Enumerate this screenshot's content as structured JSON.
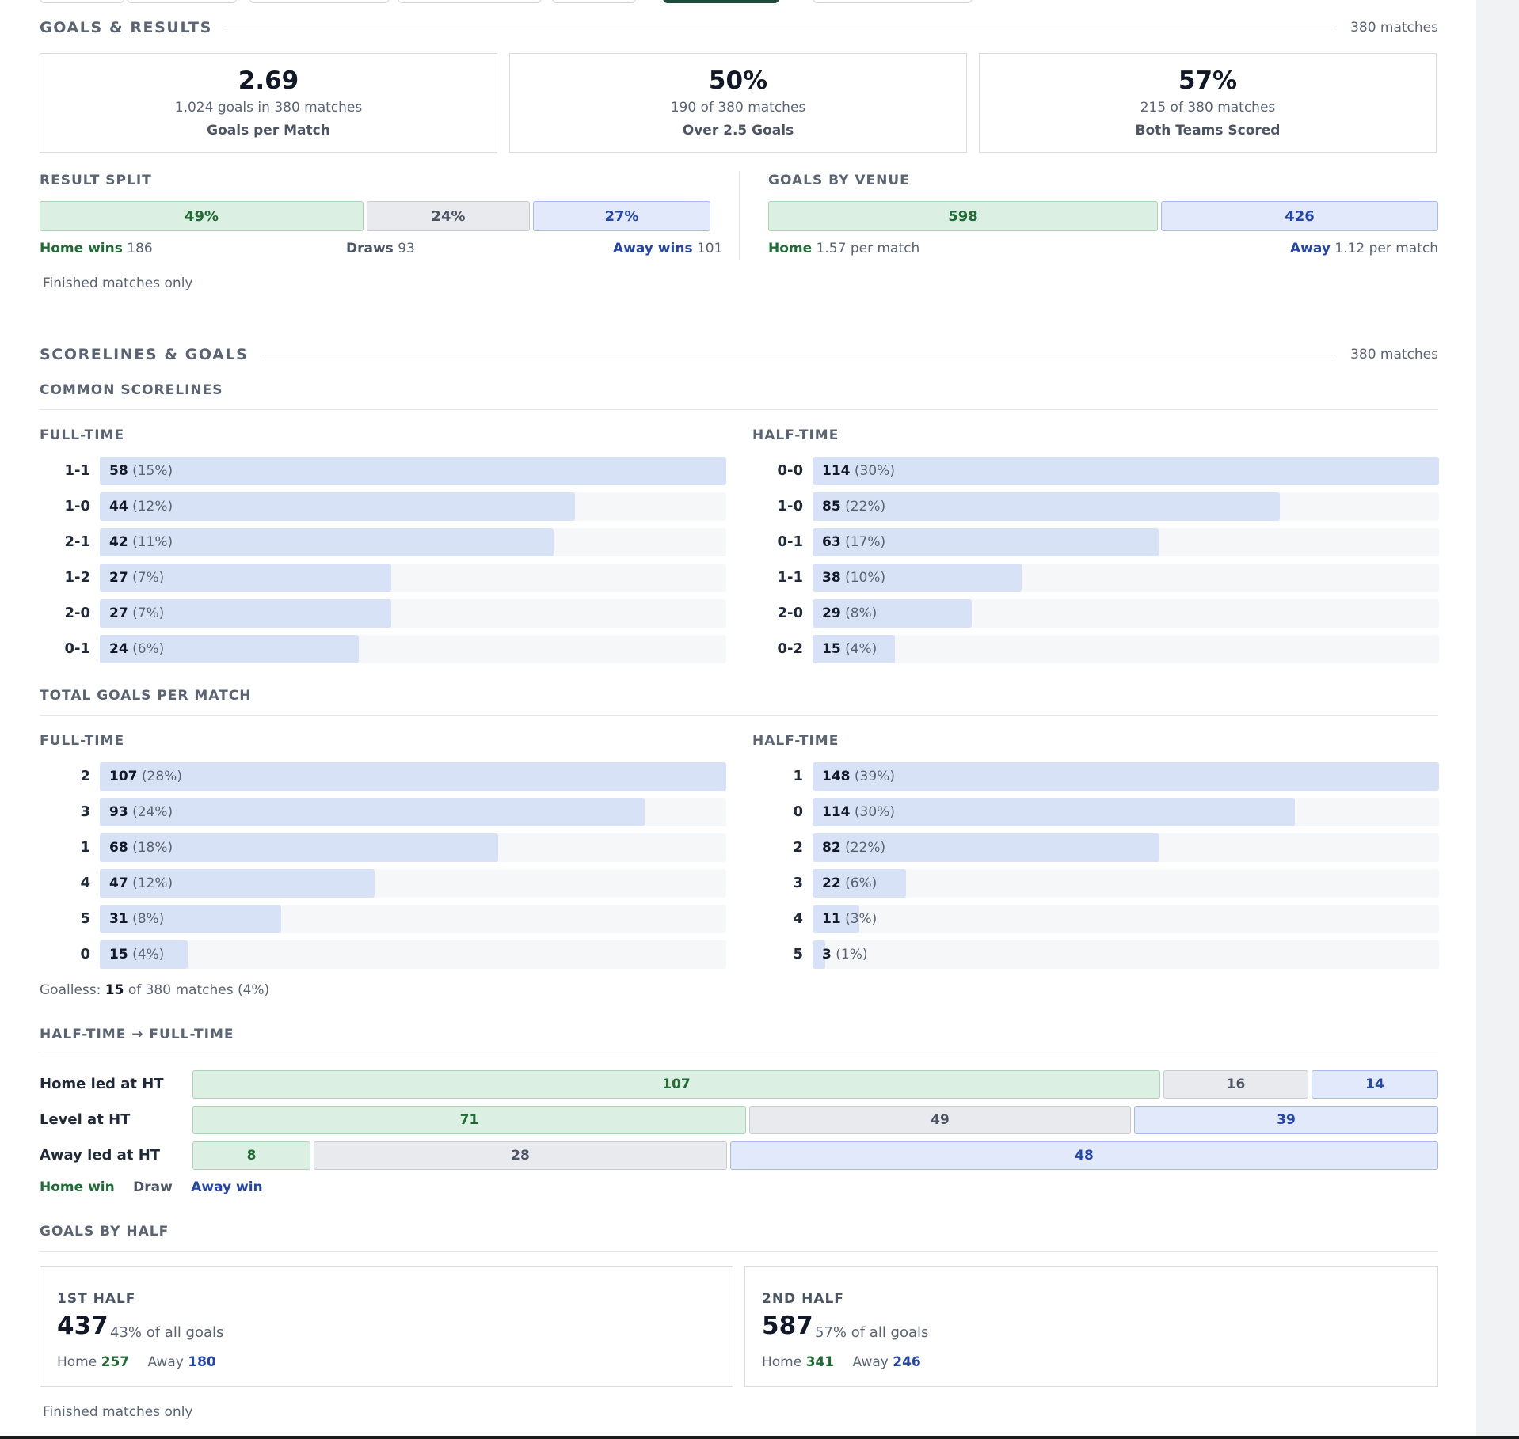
{
  "goals_results": {
    "title": "GOALS & RESULTS",
    "count": "380 matches",
    "cards": [
      {
        "value": "2.69",
        "sub": "1,024 goals in 380 matches",
        "label": "Goals per Match"
      },
      {
        "value": "50%",
        "sub": "190 of 380 matches",
        "label": "Over 2.5 Goals"
      },
      {
        "value": "57%",
        "sub": "215 of 380 matches",
        "label": "Both Teams Scored"
      }
    ],
    "result_split": {
      "title": "RESULT SPLIT",
      "home_pct": "49%",
      "draw_pct": "24%",
      "away_pct": "27%",
      "home_label": "Home wins",
      "home_count": "186",
      "draw_label": "Draws",
      "draw_count": "93",
      "away_label": "Away wins",
      "away_count": "101"
    },
    "goals_by_venue": {
      "title": "GOALS BY VENUE",
      "home_value": "598",
      "away_value": "426",
      "home_label": "Home",
      "home_rate": "1.57 per match",
      "away_label": "Away",
      "away_rate": "1.12 per match"
    },
    "note": "Finished matches only"
  },
  "scorelines_goals": {
    "title": "SCORELINES & GOALS",
    "count": "380 matches",
    "common_scorelines": {
      "title": "COMMON SCORELINES",
      "full_time": {
        "title": "FULL-TIME",
        "rows": [
          {
            "label": "1-1",
            "count": "58",
            "pct": "(15%)",
            "value": 58
          },
          {
            "label": "1-0",
            "count": "44",
            "pct": "(12%)",
            "value": 44
          },
          {
            "label": "2-1",
            "count": "42",
            "pct": "(11%)",
            "value": 42
          },
          {
            "label": "1-2",
            "count": "27",
            "pct": "(7%)",
            "value": 27
          },
          {
            "label": "2-0",
            "count": "27",
            "pct": "(7%)",
            "value": 27
          },
          {
            "label": "0-1",
            "count": "24",
            "pct": "(6%)",
            "value": 24
          }
        ]
      },
      "half_time": {
        "title": "HALF-TIME",
        "rows": [
          {
            "label": "0-0",
            "count": "114",
            "pct": "(30%)",
            "value": 114
          },
          {
            "label": "1-0",
            "count": "85",
            "pct": "(22%)",
            "value": 85
          },
          {
            "label": "0-1",
            "count": "63",
            "pct": "(17%)",
            "value": 63
          },
          {
            "label": "1-1",
            "count": "38",
            "pct": "(10%)",
            "value": 38
          },
          {
            "label": "2-0",
            "count": "29",
            "pct": "(8%)",
            "value": 29
          },
          {
            "label": "0-2",
            "count": "15",
            "pct": "(4%)",
            "value": 15
          }
        ]
      }
    },
    "total_goals": {
      "title": "TOTAL GOALS PER MATCH",
      "full_time": {
        "title": "FULL-TIME",
        "rows": [
          {
            "label": "2",
            "count": "107",
            "pct": "(28%)",
            "value": 107
          },
          {
            "label": "3",
            "count": "93",
            "pct": "(24%)",
            "value": 93
          },
          {
            "label": "1",
            "count": "68",
            "pct": "(18%)",
            "value": 68
          },
          {
            "label": "4",
            "count": "47",
            "pct": "(12%)",
            "value": 47
          },
          {
            "label": "5",
            "count": "31",
            "pct": "(8%)",
            "value": 31
          },
          {
            "label": "0",
            "count": "15",
            "pct": "(4%)",
            "value": 15
          }
        ]
      },
      "half_time": {
        "title": "HALF-TIME",
        "rows": [
          {
            "label": "1",
            "count": "148",
            "pct": "(39%)",
            "value": 148
          },
          {
            "label": "0",
            "count": "114",
            "pct": "(30%)",
            "value": 114
          },
          {
            "label": "2",
            "count": "82",
            "pct": "(22%)",
            "value": 82
          },
          {
            "label": "3",
            "count": "22",
            "pct": "(6%)",
            "value": 22
          },
          {
            "label": "4",
            "count": "11",
            "pct": "(3%)",
            "value": 11
          },
          {
            "label": "5",
            "count": "3",
            "pct": "(1%)",
            "value": 3
          }
        ]
      },
      "goalless_prefix": "Goalless:",
      "goalless_count": "15",
      "goalless_suffix": "of 380 matches (4%)"
    },
    "ht_ft": {
      "title": "HALF-TIME → FULL-TIME",
      "rows": [
        {
          "label": "Home led at HT",
          "home": 107,
          "draw": 16,
          "away": 14
        },
        {
          "label": "Level at HT",
          "home": 71,
          "draw": 49,
          "away": 39
        },
        {
          "label": "Away led at HT",
          "home": 8,
          "draw": 28,
          "away": 48
        }
      ],
      "legend_home": "Home win",
      "legend_draw": "Draw",
      "legend_away": "Away win"
    },
    "goals_by_half": {
      "title": "GOALS BY HALF",
      "first": {
        "title": "1ST HALF",
        "total": "437",
        "share": "43% of all goals",
        "home_label": "Home",
        "home": "257",
        "away_label": "Away",
        "away": "180"
      },
      "second": {
        "title": "2ND HALF",
        "total": "587",
        "share": "57% of all goals",
        "home_label": "Home",
        "home": "341",
        "away_label": "Away",
        "away": "246"
      }
    },
    "note": "Finished matches only"
  },
  "colors": {
    "home": "#1e6b34",
    "home_bg": "#dcefe3",
    "draw": "#4b5563",
    "draw_bg": "#e9eaee",
    "away": "#2446a8",
    "away_bg": "#e1e9fb",
    "bar_fill": "#d8e2f6",
    "track": "#f6f7f9",
    "active_tab": "#1f4a3a"
  }
}
